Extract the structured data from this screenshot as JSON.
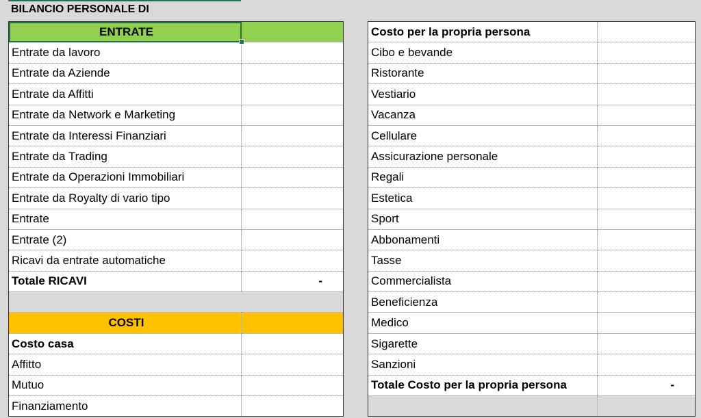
{
  "title": "BILANCIO PERSONALE DI",
  "left": {
    "rows": [
      {
        "label": "ENTRATE",
        "value": "",
        "style": "hdr-green"
      },
      {
        "label": "Entrate da lavoro",
        "value": ""
      },
      {
        "label": "Entrate da Aziende",
        "value": ""
      },
      {
        "label": "Entrate da Affitti",
        "value": ""
      },
      {
        "label": "Entrate da Network e Marketing",
        "value": ""
      },
      {
        "label": "Entrate da Interessi Finanziari",
        "value": ""
      },
      {
        "label": "Entrate da Trading",
        "value": ""
      },
      {
        "label": "Entrate da Operazioni Immobiliari",
        "value": ""
      },
      {
        "label": "Entrate da Royalty di vario tipo",
        "value": ""
      },
      {
        "label": "Entrate",
        "value": ""
      },
      {
        "label": "Entrate (2)",
        "value": ""
      },
      {
        "label": "Ricavi da entrate automatiche",
        "value": ""
      },
      {
        "label": "Totale RICAVI",
        "value": "-",
        "style": "bold"
      },
      {
        "label": "",
        "value": "",
        "style": "gap"
      },
      {
        "label": "COSTI",
        "value": "",
        "style": "hdr-orange"
      },
      {
        "label": "Costo casa",
        "value": "",
        "style": "bold"
      },
      {
        "label": "Affitto",
        "value": ""
      },
      {
        "label": "Mutuo",
        "value": ""
      },
      {
        "label": "Finanziamento",
        "value": ""
      }
    ]
  },
  "right": {
    "rows": [
      {
        "label": "Costo per la propria persona",
        "value": "",
        "style": "bold"
      },
      {
        "label": "Cibo e bevande",
        "value": ""
      },
      {
        "label": "Ristorante",
        "value": ""
      },
      {
        "label": "Vestiario",
        "value": ""
      },
      {
        "label": "Vacanza",
        "value": ""
      },
      {
        "label": "Cellulare",
        "value": ""
      },
      {
        "label": "Assicurazione personale",
        "value": ""
      },
      {
        "label": "Regali",
        "value": ""
      },
      {
        "label": "Estetica",
        "value": ""
      },
      {
        "label": "Sport",
        "value": ""
      },
      {
        "label": "Abbonamenti",
        "value": ""
      },
      {
        "label": "Tasse",
        "value": ""
      },
      {
        "label": "Commercialista",
        "value": ""
      },
      {
        "label": "Beneficienza",
        "value": ""
      },
      {
        "label": "Medico",
        "value": ""
      },
      {
        "label": "Sigarette",
        "value": ""
      },
      {
        "label": "Sanzioni",
        "value": ""
      },
      {
        "label": "Totale Costo per la propria persona",
        "value": "-",
        "style": "bold"
      },
      {
        "label": "",
        "value": "",
        "style": "grey"
      }
    ]
  },
  "colors": {
    "entrate_header": "#92d050",
    "costi_header": "#ffc000",
    "selection": "#217346",
    "background": "#d9d9d9"
  }
}
